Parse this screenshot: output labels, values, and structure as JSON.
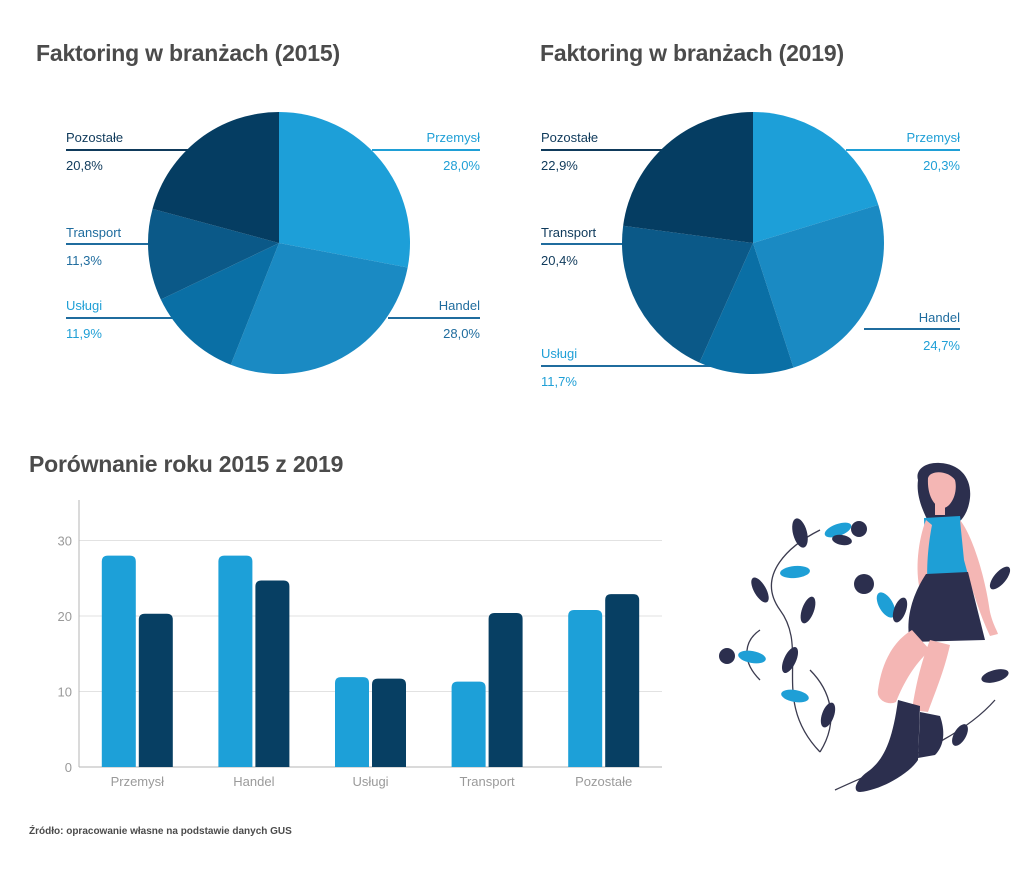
{
  "titles": {
    "pie_2015": "Faktoring w branżach (2015)",
    "pie_2019": "Faktoring w branżach (2019)",
    "bars": "Porównanie roku 2015 z 2019"
  },
  "source": "Źródło: opracowanie własne na podstawie danych GUS",
  "colors": {
    "przemysl": "#1d9fd8",
    "handel": "#1a8ac3",
    "uslugi": "#0a6fa5",
    "transport": "#0b5988",
    "pozostale": "#053d62",
    "bar_2015": "#1da0d8",
    "bar_2019": "#073f63"
  },
  "chart_data": [
    {
      "type": "pie",
      "title": "Faktoring w branżach (2015)",
      "slices": [
        {
          "label": "Przemysł",
          "value": 28.0,
          "text": "28,0%"
        },
        {
          "label": "Handel",
          "value": 28.0,
          "text": "28,0%"
        },
        {
          "label": "Usługi",
          "value": 11.9,
          "text": "11,9%"
        },
        {
          "label": "Transport",
          "value": 11.3,
          "text": "11,3%"
        },
        {
          "label": "Pozostałe",
          "value": 20.8,
          "text": "20,8%"
        }
      ]
    },
    {
      "type": "pie",
      "title": "Faktoring w branżach (2019)",
      "slices": [
        {
          "label": "Przemysł",
          "value": 20.3,
          "text": "20,3%"
        },
        {
          "label": "Handel",
          "value": 24.7,
          "text": "24,7%"
        },
        {
          "label": "Usługi",
          "value": 11.7,
          "text": "11,7%"
        },
        {
          "label": "Transport",
          "value": 20.4,
          "text": "20,4%"
        },
        {
          "label": "Pozostałe",
          "value": 22.9,
          "text": "22,9%"
        }
      ]
    },
    {
      "type": "bar",
      "title": "Porównanie roku 2015 z 2019",
      "categories": [
        "Przemysł",
        "Handel",
        "Usługi",
        "Transport",
        "Pozostałe"
      ],
      "series": [
        {
          "values": [
            28.0,
            28.0,
            11.9,
            11.3,
            20.8
          ]
        },
        {
          "values": [
            20.3,
            24.7,
            11.7,
            20.4,
            22.9
          ]
        }
      ],
      "yticks": [
        "0",
        "10",
        "20",
        "30"
      ],
      "ylim": [
        0,
        35
      ],
      "grid": true
    }
  ]
}
